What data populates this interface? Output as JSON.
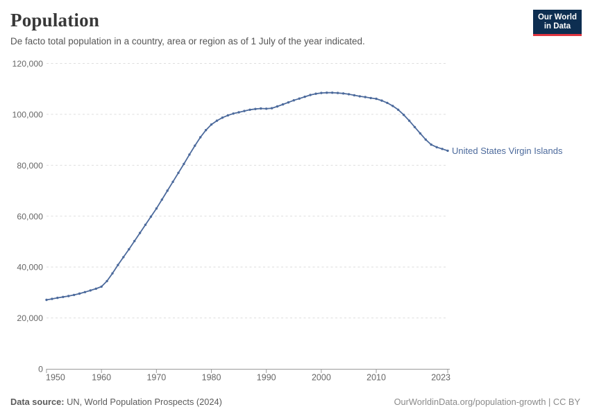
{
  "header": {
    "title": "Population",
    "subtitle": "De facto total population in a country, area or region as of 1 July of the year indicated."
  },
  "logo": {
    "line1": "Our World",
    "line2": "in Data",
    "bg_color": "#0d2e51",
    "bar_color": "#e0353f"
  },
  "footer": {
    "source_label": "Data source:",
    "source_value": " UN, World Population Prospects (2024)",
    "right_text": "OurWorldinData.org/population-growth | CC BY"
  },
  "colors": {
    "line": "#4c6a9c",
    "grid": "#dddddd",
    "axis": "#999999",
    "tick_label": "#666666"
  },
  "chart_data": {
    "type": "line",
    "title": "Population",
    "xlabel": "",
    "ylabel": "",
    "x_range": [
      1950,
      2023
    ],
    "ylim": [
      0,
      120000
    ],
    "grid": "horizontal dashed",
    "legend": "end-of-line label",
    "y_ticks": [
      {
        "value": 0,
        "label": "0"
      },
      {
        "value": 20000,
        "label": "20,000"
      },
      {
        "value": 40000,
        "label": "40,000"
      },
      {
        "value": 60000,
        "label": "60,000"
      },
      {
        "value": 80000,
        "label": "80,000"
      },
      {
        "value": 100000,
        "label": "100,000"
      },
      {
        "value": 120000,
        "label": "120,000"
      }
    ],
    "x_ticks": [
      {
        "value": 1950,
        "label": "1950"
      },
      {
        "value": 1960,
        "label": "1960"
      },
      {
        "value": 1970,
        "label": "1970"
      },
      {
        "value": 1980,
        "label": "1980"
      },
      {
        "value": 1990,
        "label": "1990"
      },
      {
        "value": 2000,
        "label": "2000"
      },
      {
        "value": 2010,
        "label": "2010"
      },
      {
        "value": 2023,
        "label": "2023"
      }
    ],
    "series": [
      {
        "name": "United States Virgin Islands",
        "color": "#4c6a9c",
        "x": [
          1950,
          1951,
          1952,
          1953,
          1954,
          1955,
          1956,
          1957,
          1958,
          1959,
          1960,
          1961,
          1962,
          1963,
          1964,
          1965,
          1966,
          1967,
          1968,
          1969,
          1970,
          1971,
          1972,
          1973,
          1974,
          1975,
          1976,
          1977,
          1978,
          1979,
          1980,
          1981,
          1982,
          1983,
          1984,
          1985,
          1986,
          1987,
          1988,
          1989,
          1990,
          1991,
          1992,
          1993,
          1994,
          1995,
          1996,
          1997,
          1998,
          1999,
          2000,
          2001,
          2002,
          2003,
          2004,
          2005,
          2006,
          2007,
          2008,
          2009,
          2010,
          2011,
          2012,
          2013,
          2014,
          2015,
          2016,
          2017,
          2018,
          2019,
          2020,
          2021,
          2022,
          2023
        ],
        "values": [
          27100,
          27500,
          27900,
          28250,
          28600,
          29050,
          29550,
          30150,
          30800,
          31500,
          32300,
          34500,
          37500,
          40800,
          43900,
          47000,
          50200,
          53400,
          56600,
          59800,
          63000,
          66500,
          70000,
          73500,
          77000,
          80500,
          84200,
          87700,
          91000,
          93800,
          96000,
          97500,
          98700,
          99600,
          100300,
          100800,
          101300,
          101800,
          102100,
          102300,
          102200,
          102400,
          103100,
          103900,
          104700,
          105500,
          106200,
          106900,
          107600,
          108100,
          108400,
          108500,
          108500,
          108400,
          108200,
          107900,
          107500,
          107100,
          106800,
          106400,
          106100,
          105400,
          104500,
          103300,
          101800,
          99800,
          97500,
          95000,
          92500,
          90100,
          88100,
          87100,
          86400,
          85700
        ]
      }
    ]
  }
}
